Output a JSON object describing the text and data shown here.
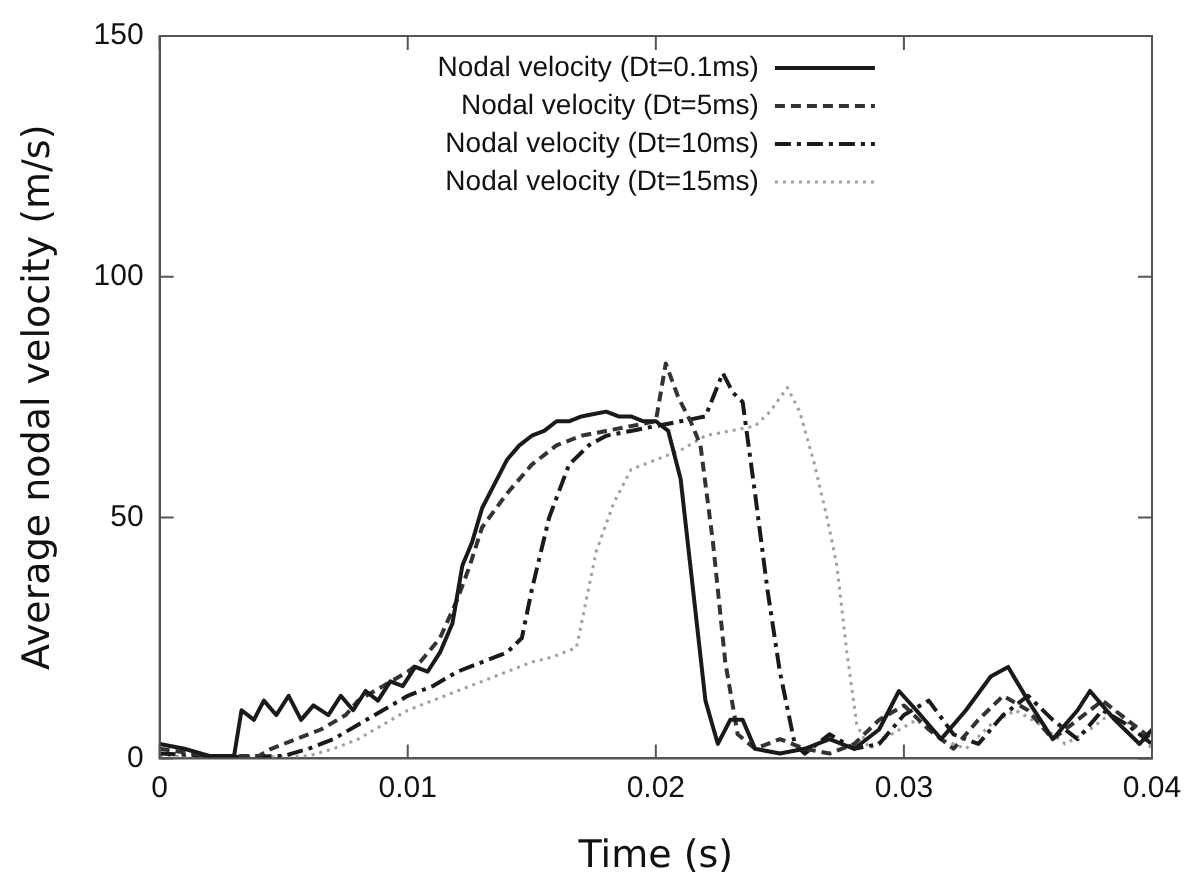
{
  "chart_data": {
    "type": "line",
    "xlabel": "Time (s)",
    "ylabel": "Average nodal velocity (m/s)",
    "xlim": [
      0,
      0.04
    ],
    "xticks": [
      0,
      0.01,
      0.02,
      0.03,
      0.04
    ],
    "ylim": [
      0,
      150
    ],
    "yticks": [
      0,
      50,
      100,
      150
    ],
    "grid": false,
    "legend": "top",
    "marker": "none",
    "series": [
      {
        "name": "Nodal velocity (Dt=0.1ms)",
        "color": "#1a1a1a",
        "line_style": "solid",
        "x": [
          0,
          0.001,
          0.002,
          0.003,
          0.0033,
          0.0038,
          0.0042,
          0.0047,
          0.0052,
          0.0057,
          0.0062,
          0.0068,
          0.0073,
          0.0078,
          0.0083,
          0.0088,
          0.0093,
          0.0098,
          0.0103,
          0.0108,
          0.0113,
          0.0118,
          0.0122,
          0.0126,
          0.013,
          0.0135,
          0.014,
          0.0145,
          0.015,
          0.0155,
          0.016,
          0.0165,
          0.017,
          0.0175,
          0.018,
          0.0185,
          0.019,
          0.0195,
          0.02,
          0.0205,
          0.021,
          0.0215,
          0.022,
          0.0225,
          0.023,
          0.0235,
          0.024,
          0.025,
          0.026,
          0.027,
          0.028,
          0.029,
          0.0298,
          0.0305,
          0.0315,
          0.0325,
          0.0335,
          0.0342,
          0.035,
          0.036,
          0.037,
          0.0375,
          0.0385,
          0.0395,
          0.04
        ],
        "values": [
          3,
          2,
          0.5,
          0.5,
          10,
          8,
          12,
          9,
          13,
          8,
          11,
          9,
          13,
          10,
          14,
          12,
          16,
          15,
          19,
          18,
          22,
          28,
          40,
          45,
          52,
          57,
          62,
          65,
          67,
          68,
          70,
          70,
          71,
          71.5,
          72,
          71,
          71,
          70,
          70,
          68,
          58,
          35,
          12,
          3,
          8,
          8,
          2,
          1,
          2,
          4,
          2,
          6,
          14,
          10,
          4,
          10,
          17,
          19,
          12,
          4,
          10,
          14,
          8,
          3,
          6
        ]
      },
      {
        "name": "Nodal velocity (Dt=5ms)",
        "color": "#333333",
        "line_style": "dashed",
        "x": [
          0,
          0.002,
          0.004,
          0.0045,
          0.0055,
          0.0065,
          0.0075,
          0.008,
          0.009,
          0.01,
          0.0105,
          0.0113,
          0.012,
          0.0125,
          0.013,
          0.014,
          0.015,
          0.016,
          0.017,
          0.018,
          0.019,
          0.02,
          0.0204,
          0.0209,
          0.0214,
          0.0218,
          0.0223,
          0.0228,
          0.0233,
          0.024,
          0.025,
          0.026,
          0.027,
          0.028,
          0.029,
          0.03,
          0.031,
          0.032,
          0.033,
          0.034,
          0.035,
          0.036,
          0.037,
          0.038,
          0.039,
          0.04
        ],
        "values": [
          2,
          0.5,
          0.5,
          2,
          4,
          6,
          9,
          12,
          15,
          18,
          20,
          25,
          33,
          40,
          48,
          55,
          61,
          65,
          67,
          68,
          69,
          70,
          82,
          75,
          70,
          65,
          45,
          20,
          5,
          2,
          4,
          2,
          1,
          3,
          8,
          11,
          6,
          2,
          8,
          13,
          10,
          4,
          8,
          12,
          8,
          4
        ]
      },
      {
        "name": "Nodal velocity (Dt=10ms)",
        "color": "#1a1a1a",
        "line_style": "dashdot",
        "x": [
          0,
          0.003,
          0.005,
          0.006,
          0.007,
          0.008,
          0.009,
          0.01,
          0.011,
          0.012,
          0.013,
          0.014,
          0.0146,
          0.015,
          0.0157,
          0.0165,
          0.0173,
          0.018,
          0.019,
          0.02,
          0.021,
          0.022,
          0.0227,
          0.0231,
          0.0235,
          0.024,
          0.0245,
          0.025,
          0.0256,
          0.026,
          0.027,
          0.028,
          0.029,
          0.03,
          0.031,
          0.032,
          0.033,
          0.034,
          0.035,
          0.036,
          0.037,
          0.038,
          0.039,
          0.04
        ],
        "values": [
          1,
          0.3,
          0.5,
          2,
          4,
          7,
          10,
          13,
          15,
          18,
          20,
          22,
          25,
          35,
          50,
          61,
          65,
          67,
          68,
          69,
          70,
          71,
          80,
          76,
          74,
          55,
          35,
          18,
          3,
          1,
          5,
          2,
          3,
          9,
          12,
          5,
          3,
          9,
          13,
          8,
          4,
          10,
          7,
          3
        ]
      },
      {
        "name": "Nodal velocity (Dt=15ms)",
        "color": "#a0a0a0",
        "line_style": "dotted",
        "x": [
          0,
          0.004,
          0.006,
          0.007,
          0.008,
          0.009,
          0.01,
          0.011,
          0.012,
          0.013,
          0.014,
          0.015,
          0.0158,
          0.0168,
          0.0176,
          0.0183,
          0.019,
          0.02,
          0.021,
          0.022,
          0.023,
          0.024,
          0.0246,
          0.0253,
          0.0258,
          0.0264,
          0.0269,
          0.0273,
          0.0277,
          0.0281,
          0.0286,
          0.0295,
          0.0305,
          0.0315,
          0.0325,
          0.0335,
          0.0345,
          0.0355,
          0.0365,
          0.0375,
          0.0385,
          0.0395,
          0.04
        ],
        "values": [
          0.5,
          0.3,
          0.5,
          2,
          4,
          7,
          10,
          12,
          14,
          16,
          18,
          20,
          21,
          23,
          43,
          53,
          60,
          62,
          64,
          67,
          68,
          69,
          72,
          77,
          72,
          61,
          50,
          40,
          22,
          7,
          2,
          5,
          8,
          4,
          2,
          7,
          10,
          7,
          3,
          6,
          10,
          5,
          2
        ]
      }
    ]
  }
}
